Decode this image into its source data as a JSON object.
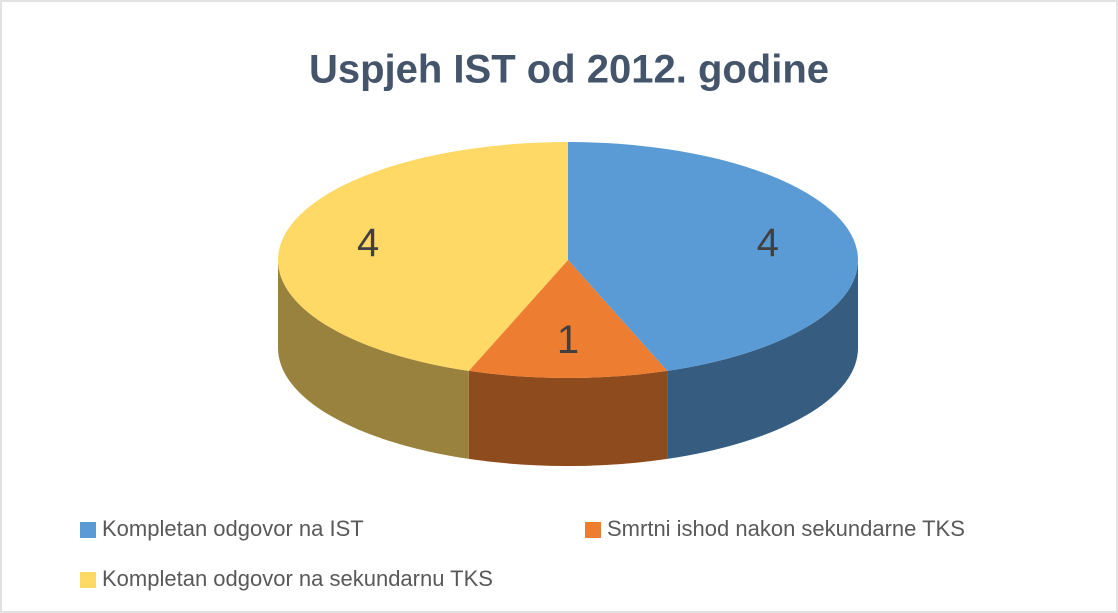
{
  "chart_data": {
    "type": "pie",
    "title": "Uspjeh IST od 2012. godine",
    "categories": [
      "Kompletan odgovor na IST",
      "Smrtni ishod nakon sekundarne TKS",
      "Kompletan odgovor na sekundarnu TKS"
    ],
    "values": [
      4,
      1,
      4
    ],
    "colors": [
      "#5b9bd5",
      "#ed7d31",
      "#ffd966"
    ],
    "legend": "bottom"
  }
}
